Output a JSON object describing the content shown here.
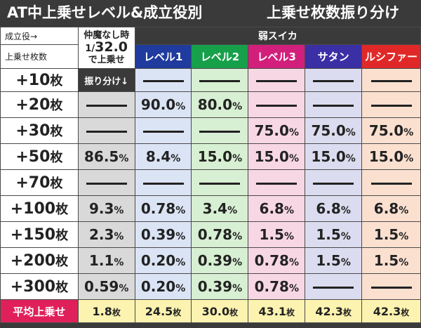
{
  "title": {
    "left": "AT中上乗せレベル&成立役別",
    "right": "上乗せ枚数振り分け"
  },
  "header": {
    "seiritsu": "成立役→",
    "uwanose": "上乗せ枚数",
    "nakama_line1": "仲魔なし時",
    "nakama_line2_prefix": "1/",
    "nakama_line2_value": "32.0",
    "nakama_line3": "で上乗せ",
    "furiwake": "振り分け↓",
    "suika": "弱スイカ"
  },
  "levels": [
    {
      "label": "レベル1",
      "color": "#1f3b9e"
    },
    {
      "label": "レベル2",
      "color": "#17a04a"
    },
    {
      "label": "レベル3",
      "color": "#d21f7c"
    },
    {
      "label": "サタン",
      "color": "#3b2fa6"
    },
    {
      "label": "ルシファー",
      "color": "#e02828"
    }
  ],
  "rows": [
    {
      "label": "+10",
      "unit": "枚",
      "values": [
        null,
        null,
        null,
        null,
        null,
        null
      ]
    },
    {
      "label": "+20",
      "unit": "枚",
      "values": [
        null,
        "90.0",
        "80.0",
        null,
        null,
        null
      ]
    },
    {
      "label": "+30",
      "unit": "枚",
      "values": [
        null,
        null,
        null,
        "75.0",
        "75.0",
        "75.0"
      ]
    },
    {
      "label": "+50",
      "unit": "枚",
      "values": [
        "86.5",
        "8.4",
        "15.0",
        "15.0",
        "15.0",
        "15.0"
      ]
    },
    {
      "label": "+70",
      "unit": "枚",
      "values": [
        null,
        null,
        null,
        null,
        null,
        null
      ]
    },
    {
      "label": "+100",
      "unit": "枚",
      "values": [
        "9.3",
        "0.78",
        "3.4",
        "6.8",
        "6.8",
        "6.8"
      ]
    },
    {
      "label": "+150",
      "unit": "枚",
      "values": [
        "2.3",
        "0.39",
        "0.78",
        "1.5",
        "1.5",
        "1.5"
      ]
    },
    {
      "label": "+200",
      "unit": "枚",
      "values": [
        "1.1",
        "0.20",
        "0.39",
        "0.78",
        "1.5",
        "1.5"
      ]
    },
    {
      "label": "+300",
      "unit": "枚",
      "values": [
        "0.59",
        "0.20",
        "0.39",
        "0.78",
        null,
        null
      ]
    }
  ],
  "pct_unit": "%",
  "average": {
    "label": "平均上乗せ",
    "unit": "枚",
    "values": [
      "1.8",
      "24.5",
      "30.0",
      "43.1",
      "42.3",
      "42.3"
    ]
  },
  "colors": {
    "nakama_bg": "#d9d9d9",
    "lv1_bg": "#dbe4f5",
    "lv2_bg": "#d7efd2",
    "lv3_bg": "#f8d7e4",
    "satan_bg": "#dcdcf0",
    "lucifer_bg": "#fbe0d0",
    "avg_label_bg": "#e0205a",
    "avg_bg": "#fdf3b0"
  }
}
